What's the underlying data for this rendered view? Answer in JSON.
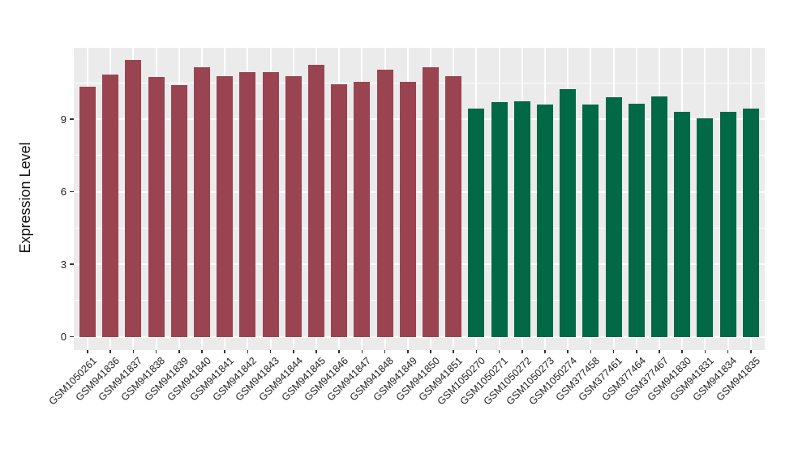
{
  "chart_data": {
    "type": "bar",
    "title": "",
    "xlabel": "",
    "ylabel": "Expression Level",
    "ylim": [
      0,
      12.02
    ],
    "yticks": [
      0,
      3,
      6,
      9
    ],
    "major_gridlines": [
      0,
      3,
      6,
      9,
      12
    ],
    "minor_gridlines": [
      1.5,
      4.5,
      7.5,
      10.5
    ],
    "grid": "on",
    "legend_position": "none",
    "categories": [
      "GSM1050261",
      "GSM941836",
      "GSM941837",
      "GSM941838",
      "GSM941839",
      "GSM941840",
      "GSM941841",
      "GSM941842",
      "GSM941843",
      "GSM941844",
      "GSM941845",
      "GSM941846",
      "GSM941847",
      "GSM941848",
      "GSM941849",
      "GSM941850",
      "GSM941851",
      "GSM1050270",
      "GSM1050271",
      "GSM1050272",
      "GSM1050273",
      "GSM1050274",
      "GSM377458",
      "GSM377461",
      "GSM377464",
      "GSM377467",
      "GSM941830",
      "GSM941831",
      "GSM941834",
      "GSM941835"
    ],
    "values": [
      10.35,
      10.85,
      11.45,
      10.75,
      10.4,
      11.15,
      10.8,
      10.95,
      10.95,
      10.8,
      11.25,
      10.45,
      10.55,
      11.05,
      10.55,
      11.15,
      10.8,
      9.45,
      9.7,
      9.75,
      9.6,
      10.25,
      9.6,
      9.9,
      9.65,
      9.95,
      9.3,
      9.05,
      9.3,
      9.45
    ],
    "bar_groups": [
      "maroon",
      "maroon",
      "maroon",
      "maroon",
      "maroon",
      "maroon",
      "maroon",
      "maroon",
      "maroon",
      "maroon",
      "maroon",
      "maroon",
      "maroon",
      "maroon",
      "maroon",
      "maroon",
      "maroon",
      "green",
      "green",
      "green",
      "green",
      "green",
      "green",
      "green",
      "green",
      "green",
      "green",
      "green",
      "green",
      "green"
    ],
    "group_colors": {
      "maroon": "#9a4451",
      "green": "#026946"
    }
  },
  "style": {
    "background": "#ffffff",
    "panel_bg": "#ebebeb",
    "grid_color": "#ffffff",
    "axis_text_color": "#1f1f1f",
    "tick_color": "#333333"
  }
}
